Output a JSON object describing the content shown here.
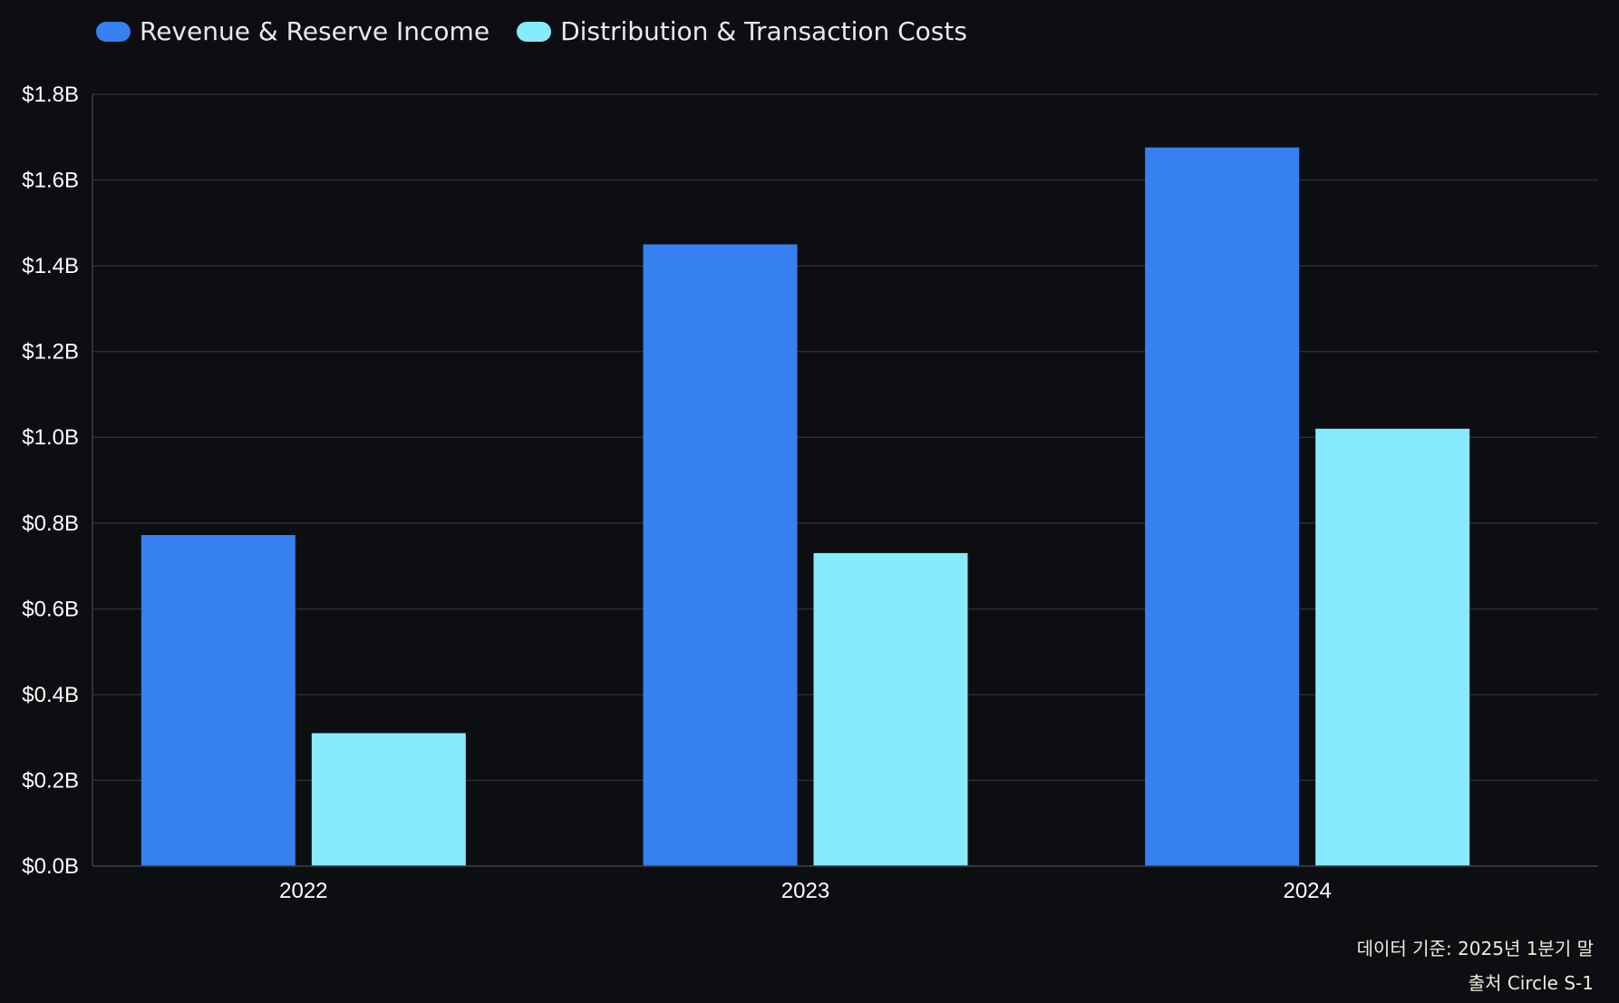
{
  "legend": [
    {
      "label": "Revenue & Reserve Income",
      "color": "#3780f2"
    },
    {
      "label": "Distribution & Transaction Costs",
      "color": "#86ecfd"
    }
  ],
  "footnotes": {
    "data_basis": "데이터 기준: 2025년 1분기 말",
    "source": "출처 Circle S-1"
  },
  "chart_data": {
    "type": "bar",
    "categories": [
      "2022",
      "2023",
      "2024"
    ],
    "series": [
      {
        "name": "Revenue & Reserve Income",
        "values": [
          0.772,
          1.45,
          1.676
        ],
        "color": "#3780f2"
      },
      {
        "name": "Distribution & Transaction Costs",
        "values": [
          0.31,
          0.73,
          1.02
        ],
        "color": "#86ecfd"
      }
    ],
    "ylim": [
      0,
      1.8
    ],
    "yticks": [
      0,
      0.2,
      0.4,
      0.6,
      0.8,
      1.0,
      1.2,
      1.4,
      1.6,
      1.8
    ],
    "ytick_labels": [
      "$0.0B",
      "$0.2B",
      "$0.4B",
      "$0.6B",
      "$0.8B",
      "$1.0B",
      "$1.2B",
      "$1.4B",
      "$1.6B",
      "$1.8B"
    ],
    "xlabel": "",
    "ylabel": "",
    "grid": true,
    "legend_position": "top-left"
  }
}
